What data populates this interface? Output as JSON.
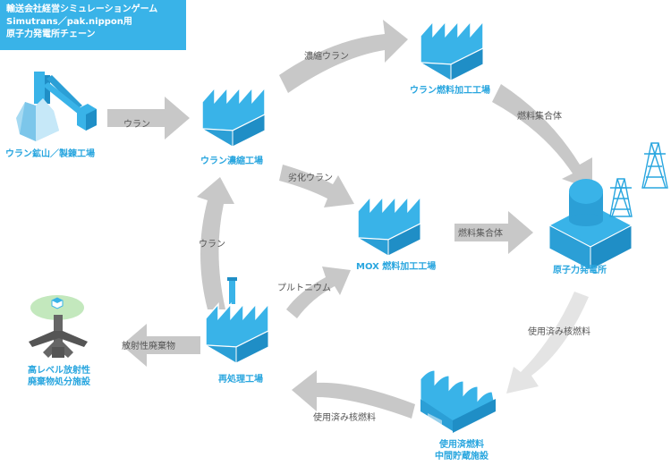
{
  "title": {
    "line1": "輸送会社経営シミュレーションゲーム",
    "line2": "Simutrans／pak.nippon用",
    "line3": "原子力発電所チェーン"
  },
  "facilities": {
    "mine": "ウラン鉱山／製錬工場",
    "enrichment": "ウラン濃縮工場",
    "uranium_fuel": "ウラン燃料加工工場",
    "mox_fuel": "MOX 燃料加工工場",
    "power_plant": "原子力発電所",
    "reprocessing": "再処理工場",
    "interim_storage_1": "使用済燃料",
    "interim_storage_2": "中間貯蔵施設",
    "disposal_1": "高レベル放射性",
    "disposal_2": "廃棄物処分施設"
  },
  "flows": {
    "mine_to_enrichment": "ウラン",
    "enriched_uranium": "濃縮ウラン",
    "fuel_assembly_1": "燃料集合体",
    "depleted_uranium": "劣化ウラン",
    "fuel_assembly_2": "燃料集合体",
    "spent_fuel_1": "使用済み核燃料",
    "spent_fuel_2": "使用済み核燃料",
    "plutonium": "プルトニウム",
    "recovered_uranium": "ウラン",
    "radioactive_waste": "放射性廃棄物"
  },
  "colors": {
    "accent": "#39b3e8",
    "arrow": "#c8c8c8",
    "arrow_light": "#e4e4e4",
    "dark": "#555555"
  }
}
